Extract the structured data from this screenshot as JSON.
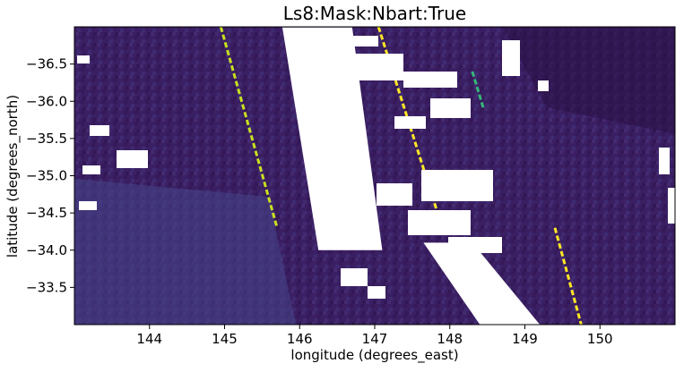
{
  "chart_data": {
    "type": "heatmap",
    "title": "Ls8:Mask:Nbart:True",
    "xlabel": "longitude (degrees_east)",
    "ylabel": "latitude (degrees_north)",
    "xlim": [
      143.0,
      151.0
    ],
    "ylim": [
      -33.0,
      -37.0
    ],
    "x_ticks": [
      144,
      145,
      146,
      147,
      148,
      149,
      150
    ],
    "y_ticks": [
      -36.5,
      -36.0,
      -35.5,
      -35.0,
      -34.5,
      -34.0,
      -33.5
    ],
    "x_tick_labels": [
      "144",
      "145",
      "146",
      "147",
      "148",
      "149",
      "150"
    ],
    "y_tick_labels": [
      "−36.5",
      "−36.0",
      "−35.5",
      "−35.0",
      "−34.5",
      "−34.0",
      "−33.5"
    ],
    "colormap": "viridis",
    "background_value_color": "#3b1f63",
    "nodata_color": "#ffffff",
    "nodata_swaths": [
      {
        "top": [
          [
            145.77,
            -36.99
          ],
          [
            146.7,
            -36.99
          ]
        ],
        "bottom": [
          [
            147.1,
            -34.0
          ],
          [
            146.25,
            -34.0
          ]
        ]
      },
      {
        "top": [
          [
            147.65,
            -34.1
          ],
          [
            148.3,
            -34.1
          ]
        ],
        "bottom": [
          [
            149.2,
            -33.0
          ],
          [
            148.4,
            -33.0
          ]
        ]
      }
    ],
    "bright_streaks": [
      {
        "from": [
          144.95,
          -37.0
        ],
        "to": [
          145.7,
          -34.3
        ],
        "color": "#c8e020"
      },
      {
        "from": [
          147.05,
          -37.0
        ],
        "to": [
          147.9,
          -34.3
        ],
        "color": "#fde725"
      },
      {
        "from": [
          149.4,
          -34.3
        ],
        "to": [
          149.75,
          -33.0
        ],
        "color": "#fde725"
      },
      {
        "from": [
          148.3,
          -36.4
        ],
        "to": [
          148.45,
          -35.9
        ],
        "color": "#35b779"
      }
    ],
    "grid": false,
    "legend": "none"
  }
}
